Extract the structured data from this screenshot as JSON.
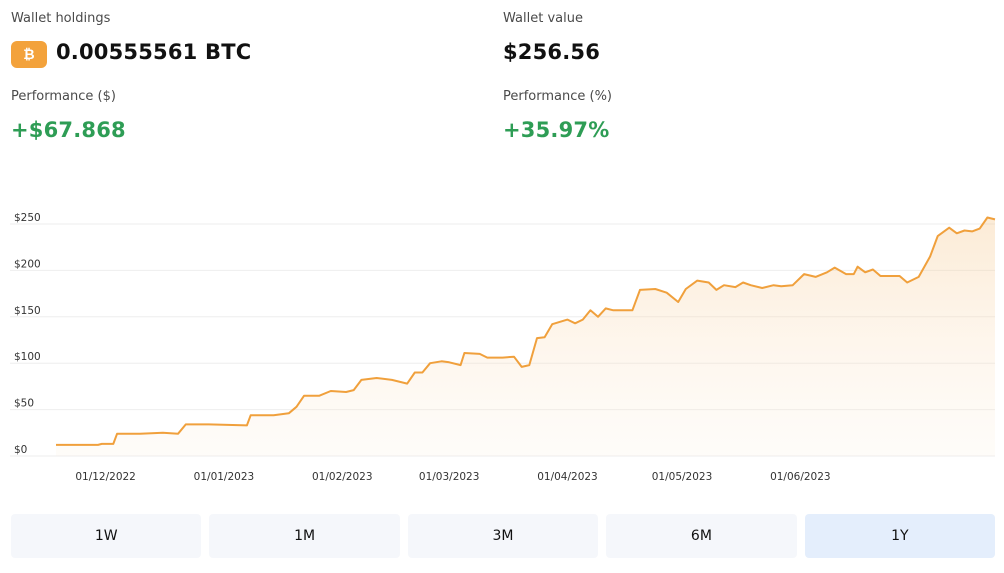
{
  "holdings": {
    "label": "Wallet holdings",
    "icon": "bitcoin-icon",
    "icon_glyph": "₿",
    "icon_color": "#f3a23b",
    "value": "0.00555561 BTC"
  },
  "wallet_value": {
    "label": "Wallet value",
    "value": "$256.56"
  },
  "performance_usd": {
    "label": "Performance ($)",
    "value": "+$67.868"
  },
  "performance_pct": {
    "label": "Performance (%)",
    "value": "+35.97%"
  },
  "colors": {
    "line": "#f0a03c",
    "positive": "#2e9d55",
    "active_range": "#e4eefc"
  },
  "chart_data": {
    "type": "area",
    "ylim": [
      0,
      250
    ],
    "y_ticks": [
      0,
      50,
      100,
      150,
      200,
      250
    ],
    "y_tick_labels": [
      "$0",
      "$50",
      "$100",
      "$150",
      "$200",
      "$250"
    ],
    "x_tick_labels": [
      "01/12/2022",
      "01/01/2023",
      "01/02/2023",
      "01/03/2023",
      "01/04/2023",
      "01/05/2023",
      "01/06/2023"
    ],
    "x_tick_dates": [
      "2022-12-01",
      "2023-01-01",
      "2023-02-01",
      "2023-03-01",
      "2023-04-01",
      "2023-05-01",
      "2023-06-01"
    ],
    "grid": true,
    "series": [
      {
        "points": [
          {
            "x": "2022-11-18",
            "y": 12
          },
          {
            "x": "2022-11-29",
            "y": 12
          },
          {
            "x": "2022-11-30",
            "y": 13
          },
          {
            "x": "2022-12-03",
            "y": 13
          },
          {
            "x": "2022-12-04",
            "y": 24
          },
          {
            "x": "2022-12-10",
            "y": 24
          },
          {
            "x": "2022-12-16",
            "y": 25
          },
          {
            "x": "2022-12-20",
            "y": 24
          },
          {
            "x": "2022-12-22",
            "y": 34
          },
          {
            "x": "2022-12-28",
            "y": 34
          },
          {
            "x": "2023-01-07",
            "y": 33
          },
          {
            "x": "2023-01-08",
            "y": 44
          },
          {
            "x": "2023-01-14",
            "y": 44
          },
          {
            "x": "2023-01-18",
            "y": 46
          },
          {
            "x": "2023-01-20",
            "y": 53
          },
          {
            "x": "2023-01-22",
            "y": 65
          },
          {
            "x": "2023-01-26",
            "y": 65
          },
          {
            "x": "2023-01-29",
            "y": 70
          },
          {
            "x": "2023-02-02",
            "y": 69
          },
          {
            "x": "2023-02-04",
            "y": 71
          },
          {
            "x": "2023-02-06",
            "y": 82
          },
          {
            "x": "2023-02-10",
            "y": 84
          },
          {
            "x": "2023-02-14",
            "y": 82
          },
          {
            "x": "2023-02-18",
            "y": 78
          },
          {
            "x": "2023-02-20",
            "y": 90
          },
          {
            "x": "2023-02-22",
            "y": 90
          },
          {
            "x": "2023-02-24",
            "y": 100
          },
          {
            "x": "2023-02-27",
            "y": 102
          },
          {
            "x": "2023-03-01",
            "y": 101
          },
          {
            "x": "2023-03-04",
            "y": 98
          },
          {
            "x": "2023-03-05",
            "y": 111
          },
          {
            "x": "2023-03-09",
            "y": 110
          },
          {
            "x": "2023-03-11",
            "y": 106
          },
          {
            "x": "2023-03-15",
            "y": 106
          },
          {
            "x": "2023-03-18",
            "y": 107
          },
          {
            "x": "2023-03-20",
            "y": 96
          },
          {
            "x": "2023-03-22",
            "y": 98
          },
          {
            "x": "2023-03-24",
            "y": 127
          },
          {
            "x": "2023-03-26",
            "y": 128
          },
          {
            "x": "2023-03-28",
            "y": 142
          },
          {
            "x": "2023-04-01",
            "y": 147
          },
          {
            "x": "2023-04-03",
            "y": 143
          },
          {
            "x": "2023-04-05",
            "y": 147
          },
          {
            "x": "2023-04-07",
            "y": 157
          },
          {
            "x": "2023-04-09",
            "y": 150
          },
          {
            "x": "2023-04-11",
            "y": 159
          },
          {
            "x": "2023-04-13",
            "y": 157
          },
          {
            "x": "2023-04-15",
            "y": 157
          },
          {
            "x": "2023-04-18",
            "y": 157
          },
          {
            "x": "2023-04-20",
            "y": 179
          },
          {
            "x": "2023-04-24",
            "y": 180
          },
          {
            "x": "2023-04-27",
            "y": 176
          },
          {
            "x": "2023-04-30",
            "y": 166
          },
          {
            "x": "2023-05-02",
            "y": 180
          },
          {
            "x": "2023-05-05",
            "y": 189
          },
          {
            "x": "2023-05-08",
            "y": 187
          },
          {
            "x": "2023-05-10",
            "y": 179
          },
          {
            "x": "2023-05-12",
            "y": 184
          },
          {
            "x": "2023-05-15",
            "y": 182
          },
          {
            "x": "2023-05-17",
            "y": 187
          },
          {
            "x": "2023-05-19",
            "y": 184
          },
          {
            "x": "2023-05-22",
            "y": 181
          },
          {
            "x": "2023-05-25",
            "y": 184
          },
          {
            "x": "2023-05-27",
            "y": 183
          },
          {
            "x": "2023-05-30",
            "y": 184
          },
          {
            "x": "2023-06-02",
            "y": 196
          },
          {
            "x": "2023-06-05",
            "y": 193
          },
          {
            "x": "2023-06-08",
            "y": 198
          },
          {
            "x": "2023-06-10",
            "y": 203
          },
          {
            "x": "2023-06-13",
            "y": 196
          },
          {
            "x": "2023-06-15",
            "y": 196
          },
          {
            "x": "2023-06-16",
            "y": 204
          },
          {
            "x": "2023-06-18",
            "y": 198
          },
          {
            "x": "2023-06-20",
            "y": 201
          },
          {
            "x": "2023-06-22",
            "y": 194
          },
          {
            "x": "2023-06-27",
            "y": 194
          },
          {
            "x": "2023-06-29",
            "y": 187
          },
          {
            "x": "2023-07-02",
            "y": 193
          },
          {
            "x": "2023-07-05",
            "y": 215
          },
          {
            "x": "2023-07-07",
            "y": 237
          },
          {
            "x": "2023-07-10",
            "y": 246
          },
          {
            "x": "2023-07-12",
            "y": 240
          },
          {
            "x": "2023-07-14",
            "y": 243
          },
          {
            "x": "2023-07-16",
            "y": 242
          },
          {
            "x": "2023-07-18",
            "y": 245
          },
          {
            "x": "2023-07-20",
            "y": 257
          },
          {
            "x": "2023-07-22",
            "y": 255
          }
        ]
      }
    ]
  },
  "ranges": [
    {
      "label": "1W",
      "active": false
    },
    {
      "label": "1M",
      "active": false
    },
    {
      "label": "3M",
      "active": false
    },
    {
      "label": "6M",
      "active": false
    },
    {
      "label": "1Y",
      "active": true
    }
  ]
}
